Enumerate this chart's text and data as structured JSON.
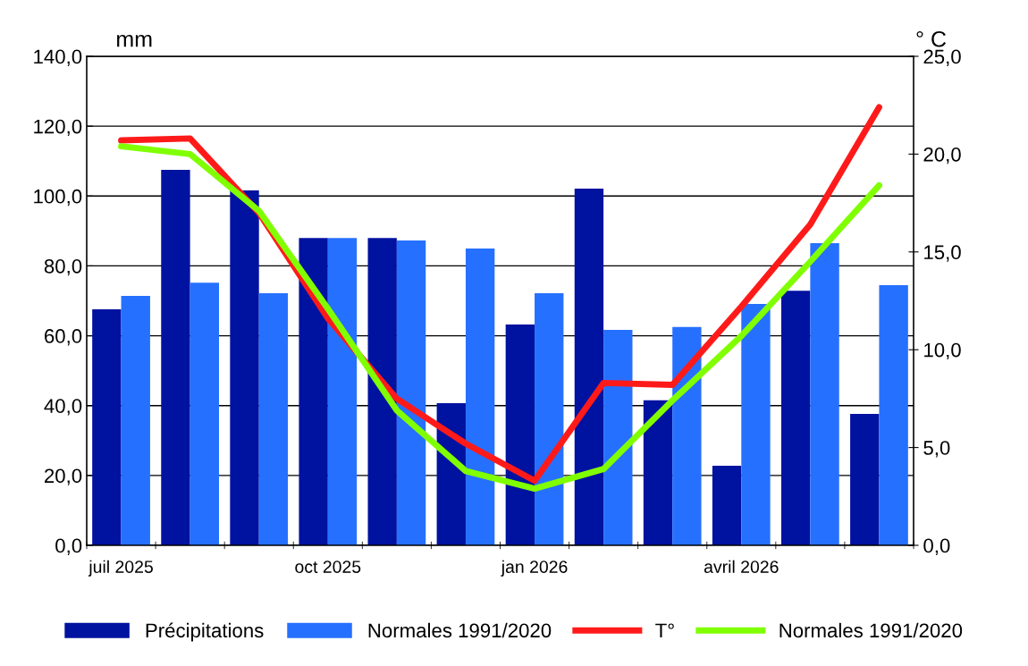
{
  "chart_data": {
    "type": "bar",
    "categories": [
      "juil 2025",
      null,
      null,
      "oct 2025",
      null,
      null,
      "jan 2026",
      null,
      null,
      "avril 2026",
      null,
      null
    ],
    "ylabel": "mm",
    "y2label": "° C",
    "series": [
      {
        "name": "Précipitations",
        "color": "#0012a0",
        "values": [
          67.6,
          107.5,
          101.6,
          88.0,
          88.0,
          40.7,
          63.2,
          102.1,
          41.5,
          22.8,
          72.9,
          37.6
        ]
      },
      {
        "name": "Normales 1991/2020",
        "color": "#2670ff",
        "values": [
          71.4,
          75.2,
          72.2,
          88.0,
          87.3,
          85.0,
          72.2,
          61.7,
          62.5,
          69.1,
          86.5,
          74.5
        ]
      },
      {
        "name": "T°",
        "type": "line",
        "axis": "y2",
        "color": "#ff1a1a",
        "values": [
          20.7,
          20.8,
          17.0,
          11.6,
          7.5,
          5.2,
          3.3,
          8.3,
          8.2,
          12.2,
          16.4,
          22.4
        ]
      },
      {
        "name": "Normales 1991/2020",
        "type": "line",
        "axis": "y2",
        "color": "#80ff00",
        "values": [
          20.4,
          20.0,
          17.1,
          12.1,
          6.9,
          3.8,
          2.9,
          3.9,
          7.4,
          10.7,
          14.5,
          18.4
        ]
      }
    ],
    "ylim": [
      0,
      140
    ],
    "yticks": [
      {
        "value": 0,
        "label": "0,0"
      },
      {
        "value": 20,
        "label": "20,0"
      },
      {
        "value": 40,
        "label": "40,0"
      },
      {
        "value": 60,
        "label": "60,0"
      },
      {
        "value": 80,
        "label": "80,0"
      },
      {
        "value": 100,
        "label": "100,0"
      },
      {
        "value": 120,
        "label": "120,0"
      },
      {
        "value": 140,
        "label": "140,0"
      }
    ],
    "y2lim": [
      0,
      25
    ],
    "y2ticks": [
      {
        "value": 0,
        "label": "0,0"
      },
      {
        "value": 5,
        "label": "5,0"
      },
      {
        "value": 10,
        "label": "10,0"
      },
      {
        "value": 15,
        "label": "15,0"
      },
      {
        "value": 20,
        "label": "20,0"
      },
      {
        "value": 25,
        "label": "25,0"
      }
    ],
    "grid": "y",
    "legend": "bottom",
    "marker": "none",
    "line_style": "solid"
  }
}
